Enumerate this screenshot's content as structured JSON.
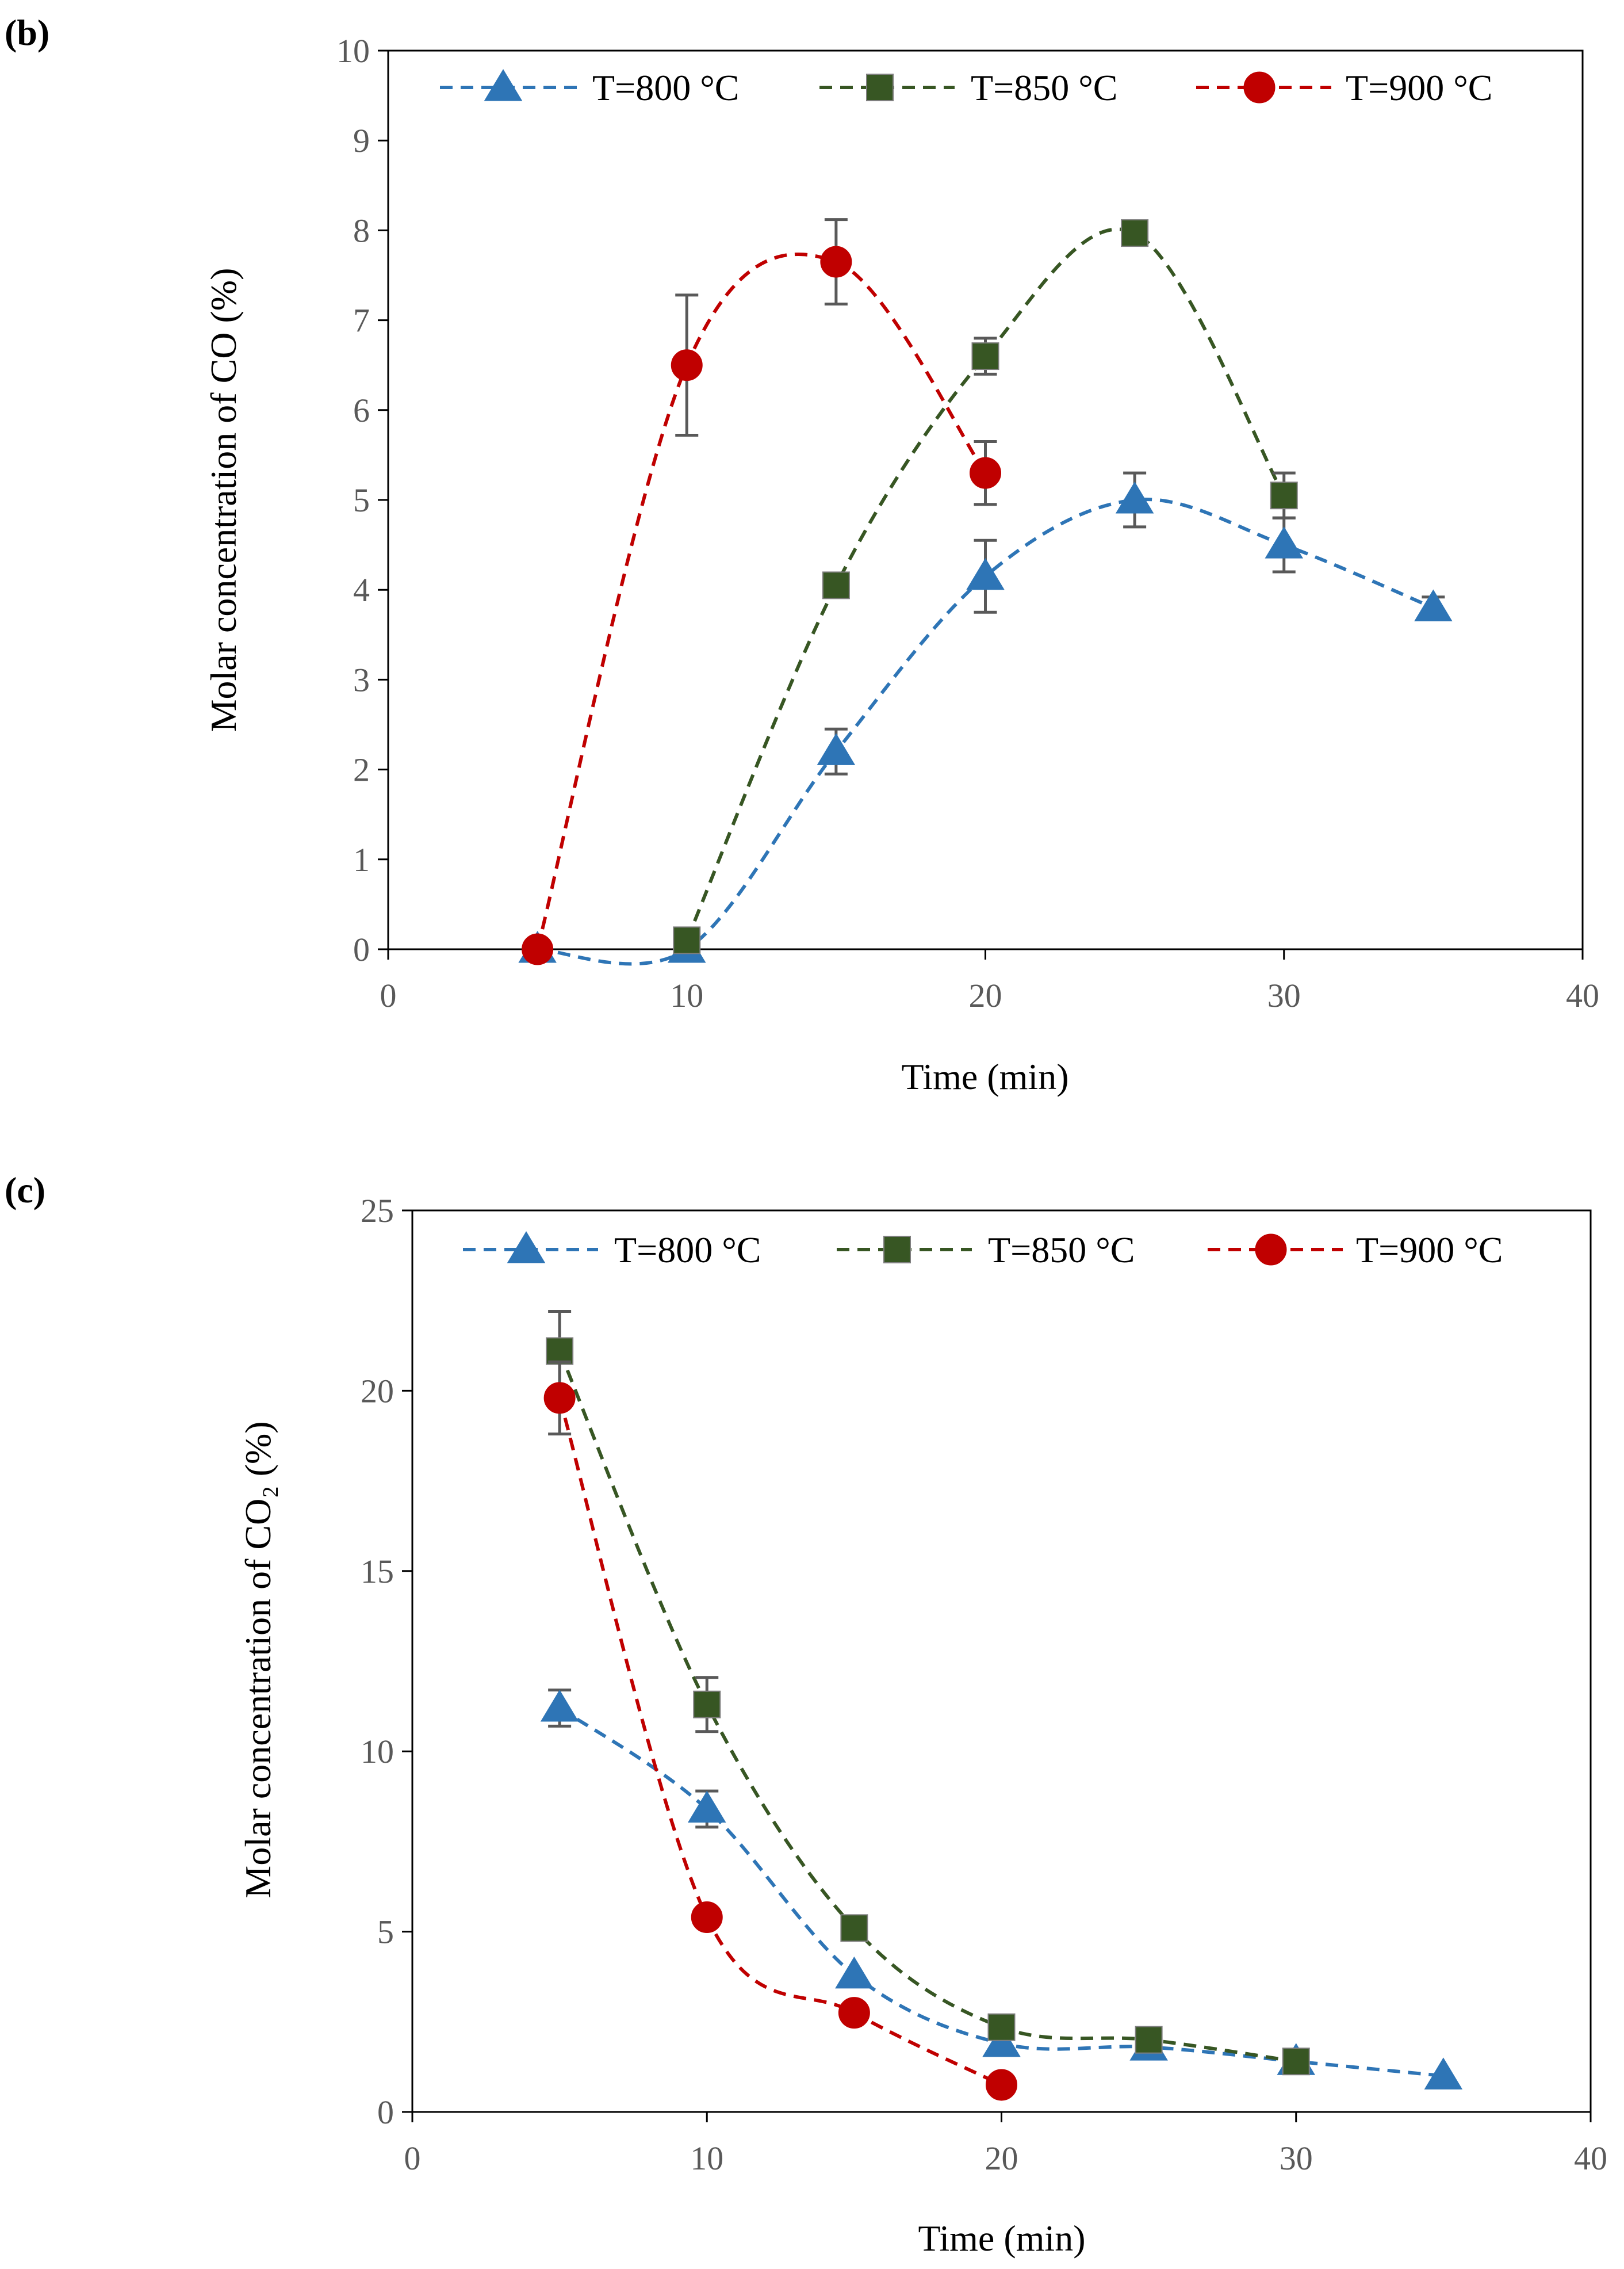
{
  "chart_data": [
    {
      "panel_label": "(b)",
      "type": "scatter",
      "title": "",
      "xlabel": "Time (min)",
      "ylabel": "Molar concentration of CO (%)",
      "xlim": [
        0,
        40
      ],
      "ylim": [
        0,
        10
      ],
      "x_ticks": [
        "0",
        "10",
        "20",
        "30",
        "40"
      ],
      "y_ticks": [
        "0",
        "1",
        "2",
        "3",
        "4",
        "5",
        "6",
        "7",
        "8",
        "9",
        "10"
      ],
      "grid": false,
      "legend_position": "top",
      "series": [
        {
          "name": "T=800 °C",
          "marker": "triangle",
          "color": "#2E75B6",
          "marker_color": "#2E75B6",
          "x": [
            5,
            10,
            15,
            20,
            25,
            30,
            35
          ],
          "y": [
            0,
            0,
            2.2,
            4.15,
            5.0,
            4.5,
            3.8
          ],
          "error": [
            0,
            0,
            0.25,
            0.4,
            0.3,
            0.3,
            0.12
          ]
        },
        {
          "name": "T=850 °C",
          "marker": "square",
          "color": "#375623",
          "marker_color": "#375623",
          "x": [
            10,
            15,
            20,
            25,
            30
          ],
          "y": [
            0.1,
            4.05,
            6.6,
            7.97,
            5.05
          ],
          "error": [
            0,
            0,
            0.2,
            0.12,
            0.25
          ]
        },
        {
          "name": "T=900 °C",
          "marker": "circle",
          "color": "#C00000",
          "marker_color": "#C00000",
          "x": [
            5,
            10,
            15,
            20
          ],
          "y": [
            0,
            6.5,
            7.65,
            5.3
          ],
          "error": [
            0,
            0.78,
            0.47,
            0.35
          ]
        }
      ]
    },
    {
      "panel_label": "(c)",
      "type": "scatter",
      "title": "",
      "xlabel": "Time (min)",
      "ylabel": "Molar concentration of CO₂ (%)",
      "xlim": [
        0,
        40
      ],
      "ylim": [
        0,
        25
      ],
      "x_ticks": [
        "0",
        "10",
        "20",
        "30",
        "40"
      ],
      "y_ticks": [
        "0",
        "5",
        "10",
        "15",
        "20",
        "25"
      ],
      "grid": false,
      "legend_position": "top",
      "series": [
        {
          "name": "T=800 °C",
          "marker": "triangle",
          "color": "#2E75B6",
          "marker_color": "#2E75B6",
          "x": [
            5,
            10,
            15,
            20,
            25,
            30,
            35
          ],
          "y": [
            11.2,
            8.4,
            3.8,
            1.9,
            1.8,
            1.4,
            1.0
          ],
          "error": [
            0.5,
            0.5,
            0,
            0,
            0,
            0,
            0
          ]
        },
        {
          "name": "T=850 °C",
          "marker": "square",
          "color": "#375623",
          "marker_color": "#375623",
          "x": [
            5,
            10,
            15,
            20,
            25,
            30
          ],
          "y": [
            21.1,
            11.3,
            5.1,
            2.35,
            2.0,
            1.4
          ],
          "error": [
            1.1,
            0.75,
            0,
            0,
            0,
            0
          ]
        },
        {
          "name": "T=900 °C",
          "marker": "circle",
          "color": "#C00000",
          "marker_color": "#C00000",
          "x": [
            5,
            10,
            15,
            20
          ],
          "y": [
            19.8,
            5.4,
            2.75,
            0.75
          ],
          "error": [
            1.0,
            0,
            0,
            0
          ]
        }
      ]
    }
  ]
}
